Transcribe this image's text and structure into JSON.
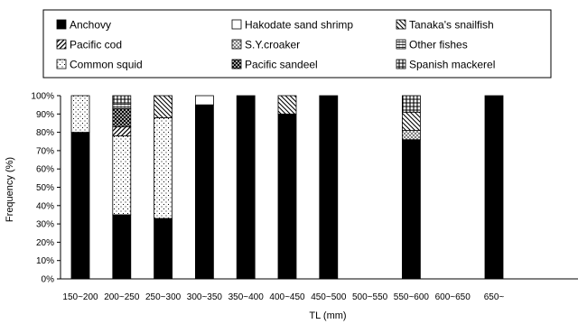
{
  "chart_data": {
    "type": "bar",
    "stacked": true,
    "xlabel": "TL (mm)",
    "ylabel": "Frequency (%)",
    "ylim": [
      0,
      100
    ],
    "yticks": [
      "0%",
      "10%",
      "20%",
      "30%",
      "40%",
      "50%",
      "60%",
      "70%",
      "80%",
      "90%",
      "100%"
    ],
    "grid": false,
    "legend_position": "top",
    "categories": [
      "150~200",
      "200~250",
      "250~300",
      "300~350",
      "350~400",
      "400~450",
      "450~500",
      "500~550",
      "550~600",
      "600~650",
      "650~"
    ],
    "series": [
      {
        "name": "Anchovy",
        "pattern": "solid",
        "values": [
          80,
          35,
          33,
          95,
          100,
          90,
          100,
          0,
          76,
          0,
          100
        ]
      },
      {
        "name": "Hakodate sand shrimp",
        "pattern": "empty",
        "values": [
          0,
          0,
          0,
          5,
          0,
          0,
          0,
          0,
          0,
          0,
          0
        ]
      },
      {
        "name": "Tanaka's snailfish",
        "pattern": "backslash",
        "values": [
          0,
          0,
          12,
          0,
          0,
          10,
          0,
          0,
          10,
          0,
          0
        ]
      },
      {
        "name": "Pacific cod",
        "pattern": "slash",
        "values": [
          0,
          5,
          0,
          0,
          0,
          0,
          0,
          0,
          0,
          0,
          0
        ]
      },
      {
        "name": "S.Y.croaker",
        "pattern": "hatch",
        "values": [
          0,
          0,
          0,
          0,
          0,
          0,
          0,
          0,
          5,
          0,
          0
        ]
      },
      {
        "name": "Other fishes",
        "pattern": "hgrid",
        "values": [
          0,
          3,
          0,
          0,
          0,
          0,
          0,
          0,
          0,
          0,
          0
        ]
      },
      {
        "name": "Common squid",
        "pattern": "dots",
        "values": [
          20,
          43,
          55,
          0,
          0,
          0,
          0,
          0,
          0,
          0,
          0
        ]
      },
      {
        "name": "Pacific sandeel",
        "pattern": "xcross",
        "values": [
          0,
          10,
          0,
          0,
          0,
          0,
          0,
          0,
          0,
          0,
          0
        ]
      },
      {
        "name": "Spanish mackerel",
        "pattern": "pcross",
        "values": [
          0,
          4,
          0,
          0,
          0,
          0,
          0,
          0,
          9,
          0,
          0
        ]
      }
    ],
    "stack_order": [
      "Anchovy",
      "Common squid",
      "Pacific cod",
      "S.Y.croaker",
      "Pacific sandeel",
      "Tanaka's snailfish",
      "Other fishes",
      "Spanish mackerel",
      "Hakodate sand shrimp"
    ]
  }
}
